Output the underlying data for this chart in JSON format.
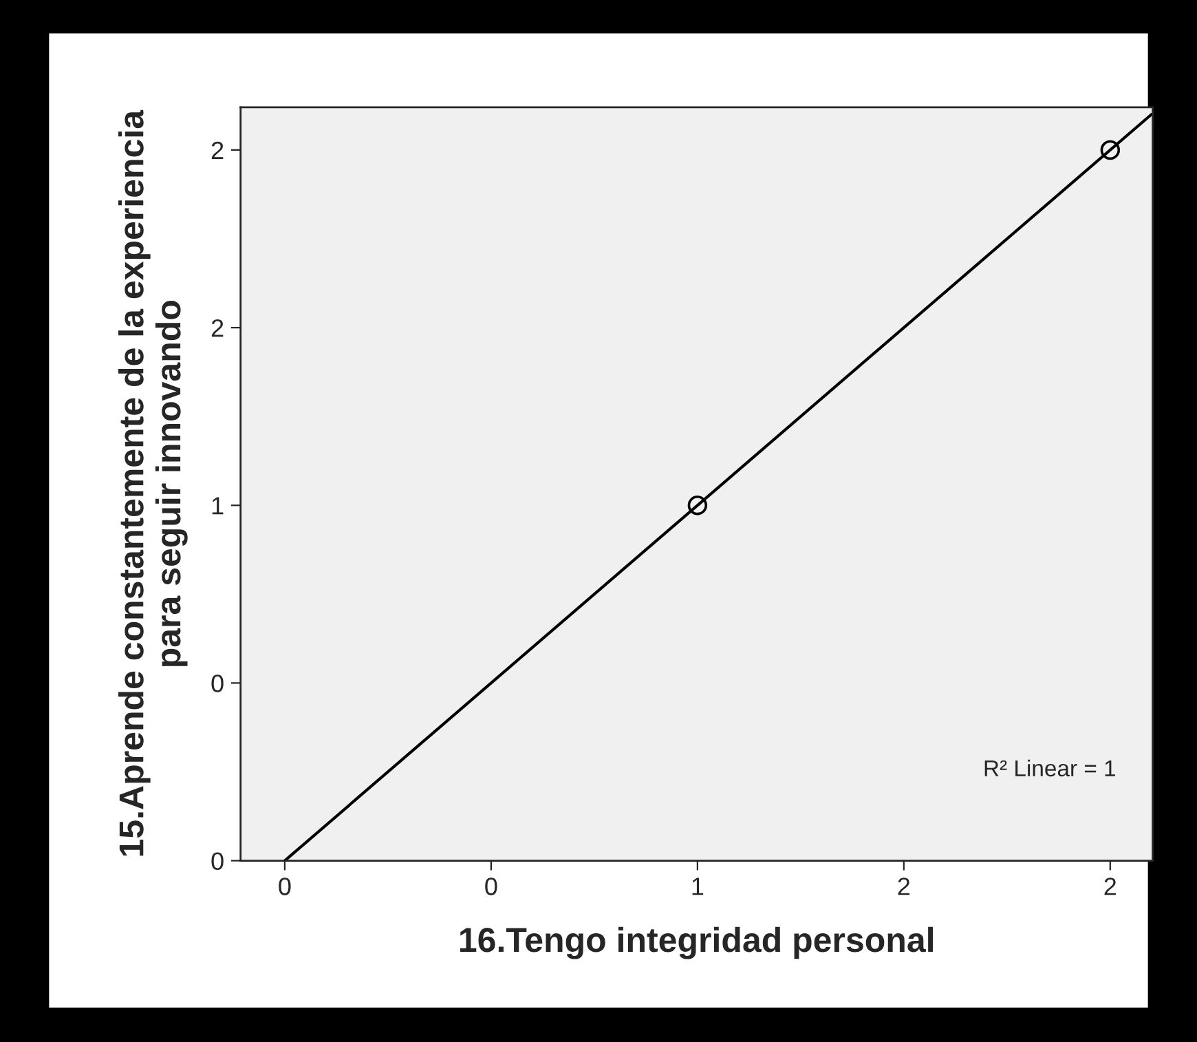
{
  "chart_data": {
    "type": "scatter",
    "xlabel": "16.Tengo integridad personal",
    "ylabel": "15.Aprende constantemente de la experiencia\npara seguir innovando",
    "series": [
      {
        "color": "#000000",
        "marker": "circle",
        "x": [
          1,
          2
        ],
        "values": [
          1,
          2
        ]
      },
      {
        "type": "line",
        "color": "#000000",
        "marker": "none",
        "line_style": "solid",
        "x": [
          0,
          2.1
        ],
        "values": [
          0,
          2.1
        ]
      }
    ],
    "xlim": [
      -0.107,
      2.103
    ],
    "ylim": [
      0,
      2.12
    ],
    "xticks": [
      {
        "value": 0,
        "label": "0"
      },
      {
        "value": 0.5,
        "label": "0"
      },
      {
        "value": 1,
        "label": "1"
      },
      {
        "value": 1.5,
        "label": "2"
      },
      {
        "value": 2,
        "label": "2"
      }
    ],
    "yticks": [
      {
        "value": 0,
        "label": "0"
      },
      {
        "value": 0.5,
        "label": "0"
      },
      {
        "value": 1,
        "label": "1"
      },
      {
        "value": 1.5,
        "label": "2"
      },
      {
        "value": 2,
        "label": "2"
      }
    ],
    "annotations": [
      "R² Linear = 1"
    ],
    "grid": false,
    "legend": false
  }
}
